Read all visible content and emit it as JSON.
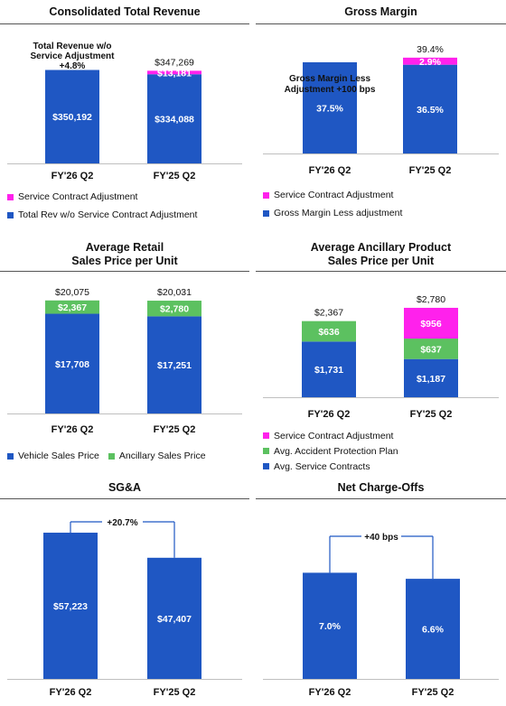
{
  "colors": {
    "blue": "#1f57c3",
    "magenta": "#ff21ec",
    "green": "#5cc160"
  },
  "chart_data": [
    {
      "id": "revenue",
      "type": "bar",
      "stacked": true,
      "title": "Consolidated Total Revenue",
      "categories": [
        "FY'26 Q2",
        "FY'25 Q2"
      ],
      "series": [
        {
          "name": "Total Rev w/o Service Contract Adjustment",
          "color": "#1f57c3",
          "values": [
            350192,
            334088
          ],
          "labels": [
            "$350,192",
            "$334,088"
          ]
        },
        {
          "name": "Service Contract Adjustment",
          "color": "#ff21ec",
          "values": [
            null,
            13181
          ],
          "labels": [
            "",
            "$13,181"
          ]
        }
      ],
      "totals": [
        "",
        "$347,269"
      ],
      "annotation": "Total Revenue w/o Service Adjustment +4.8%",
      "ylim": [
        0,
        450000
      ]
    },
    {
      "id": "margin",
      "type": "bar",
      "stacked": true,
      "title": "Gross Margin",
      "categories": [
        "FY'26 Q2",
        "FY'25 Q2"
      ],
      "series": [
        {
          "name": "Gross Margin Less adjustment",
          "color": "#1f57c3",
          "values": [
            37.5,
            36.5
          ],
          "labels": [
            "37.5%",
            "36.5%"
          ]
        },
        {
          "name": "Service Contract Adjustment",
          "color": "#ff21ec",
          "values": [
            null,
            2.9
          ],
          "labels": [
            "",
            "2.9%"
          ]
        }
      ],
      "totals": [
        "",
        "39.4%"
      ],
      "annotation": "Gross Margin Less Adjustment +100 bps",
      "ylim": [
        0,
        49
      ]
    },
    {
      "id": "retail",
      "type": "bar",
      "stacked": true,
      "title": "Average Retail Sales Price per Unit",
      "categories": [
        "FY'26 Q2",
        "FY'25 Q2"
      ],
      "series": [
        {
          "name": "Vehicle Sales Price",
          "color": "#1f57c3",
          "values": [
            17708,
            17251
          ],
          "labels": [
            "$17,708",
            "$17,251"
          ]
        },
        {
          "name": "Ancillary Sales Price",
          "color": "#5cc160",
          "values": [
            2367,
            2780
          ],
          "labels": [
            "$2,367",
            "$2,780"
          ]
        }
      ],
      "totals": [
        "$20,075",
        "$20,031"
      ],
      "ylim": [
        0,
        21800
      ]
    },
    {
      "id": "ancillary",
      "type": "bar",
      "stacked": true,
      "title": "Average Ancillary Product Sales Price per Unit",
      "categories": [
        "FY'26 Q2",
        "FY'25 Q2"
      ],
      "series": [
        {
          "name": "Avg. Service Contracts",
          "color": "#1f57c3",
          "values": [
            1731,
            1187
          ],
          "labels": [
            "$1,731",
            "$1,187"
          ]
        },
        {
          "name": "Avg. Accident Protection Plan",
          "color": "#5cc160",
          "values": [
            636,
            637
          ],
          "labels": [
            "$636",
            "$637"
          ]
        },
        {
          "name": "Service Contract Adjustment",
          "color": "#ff21ec",
          "values": [
            null,
            956
          ],
          "labels": [
            "",
            "$956"
          ]
        }
      ],
      "totals": [
        "$2,367",
        "$2,780"
      ],
      "ylim": [
        0,
        3200
      ]
    },
    {
      "id": "sga",
      "type": "bar",
      "stacked": false,
      "title": "SG&A",
      "categories": [
        "FY'26 Q2",
        "FY'25 Q2"
      ],
      "series": [
        {
          "name": "SG&A",
          "color": "#1f57c3",
          "values": [
            57223,
            47407
          ],
          "labels": [
            "$57,223",
            "$47,407"
          ]
        }
      ],
      "change_label": "+20.7%",
      "ylim": [
        0,
        65000
      ]
    },
    {
      "id": "nco",
      "type": "bar",
      "stacked": false,
      "title": "Net Charge-Offs",
      "categories": [
        "FY'26 Q2",
        "FY'25 Q2"
      ],
      "series": [
        {
          "name": "Net Charge-Offs",
          "color": "#1f57c3",
          "values": [
            7.0,
            6.6
          ],
          "labels": [
            "7.0%",
            "6.6%"
          ]
        }
      ],
      "change_label": "+40 bps",
      "ylim": [
        0,
        10
      ]
    }
  ],
  "titles": {
    "revenue": "Consolidated Total Revenue",
    "margin": "Gross Margin",
    "retail_1": "Average Retail",
    "retail_2": "Sales Price per Unit",
    "ancillary_1": "Average Ancillary Product",
    "ancillary_2": "Sales Price per Unit",
    "sga": "SG&A",
    "nco": "Net Charge-Offs"
  },
  "legends": {
    "revenue": [
      "Service Contract Adjustment",
      "Total Rev w/o Service Contract Adjustment"
    ],
    "margin": [
      "Service Contract Adjustment",
      "Gross Margin Less adjustment"
    ],
    "retail": [
      "Vehicle Sales Price",
      "Ancillary Sales Price"
    ],
    "ancillary": [
      "Service Contract Adjustment",
      "Avg. Accident Protection Plan",
      "Avg. Service Contracts"
    ]
  },
  "annotations": {
    "revenue": [
      "Total Revenue w/o",
      "Service Adjustment",
      "+4.8%"
    ],
    "margin": [
      "Gross Margin Less",
      "Adjustment +100 bps"
    ]
  }
}
